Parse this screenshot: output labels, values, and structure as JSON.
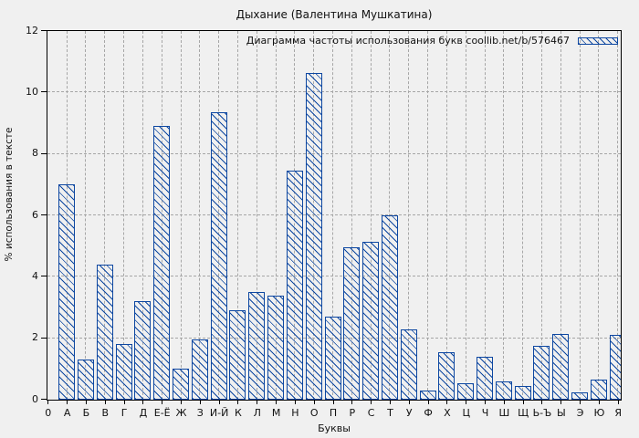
{
  "colors": {
    "background": "#f0f0f0",
    "plot_border": "#000000",
    "grid": "#a6a6a6",
    "bar": "#0d47a1",
    "text": "#111111"
  },
  "legend": {
    "label": "Диаграмма частоты использования букв coollib.net/b/576467"
  },
  "chart_data": {
    "type": "bar",
    "title": "Дыхание (Валентина Мушкатина)",
    "xlabel": "Буквы",
    "ylabel": "% использования в тексте",
    "x_origin_label": "0",
    "categories": [
      "А",
      "Б",
      "В",
      "Г",
      "Д",
      "Е-Ё",
      "Ж",
      "З",
      "И-Й",
      "К",
      "Л",
      "М",
      "Н",
      "О",
      "П",
      "Р",
      "С",
      "Т",
      "У",
      "Ф",
      "Х",
      "Ц",
      "Ч",
      "Ш",
      "Щ",
      "Ь-Ъ",
      "Ы",
      "Э",
      "Ю",
      "Я"
    ],
    "values": [
      7.0,
      1.3,
      4.4,
      1.8,
      3.2,
      8.9,
      1.0,
      1.95,
      9.35,
      2.9,
      3.5,
      3.4,
      7.45,
      10.65,
      2.7,
      4.95,
      5.15,
      6.0,
      2.3,
      0.3,
      1.55,
      0.55,
      1.4,
      0.6,
      0.45,
      1.75,
      2.15,
      0.25,
      0.65,
      2.1
    ],
    "ylim": [
      0,
      12
    ],
    "yticks": [
      0,
      2,
      4,
      6,
      8,
      10,
      12
    ],
    "grid": true,
    "hatch": "backslash-diagonal",
    "bar_color": "#0d47a1",
    "legend_position": "top-right"
  }
}
